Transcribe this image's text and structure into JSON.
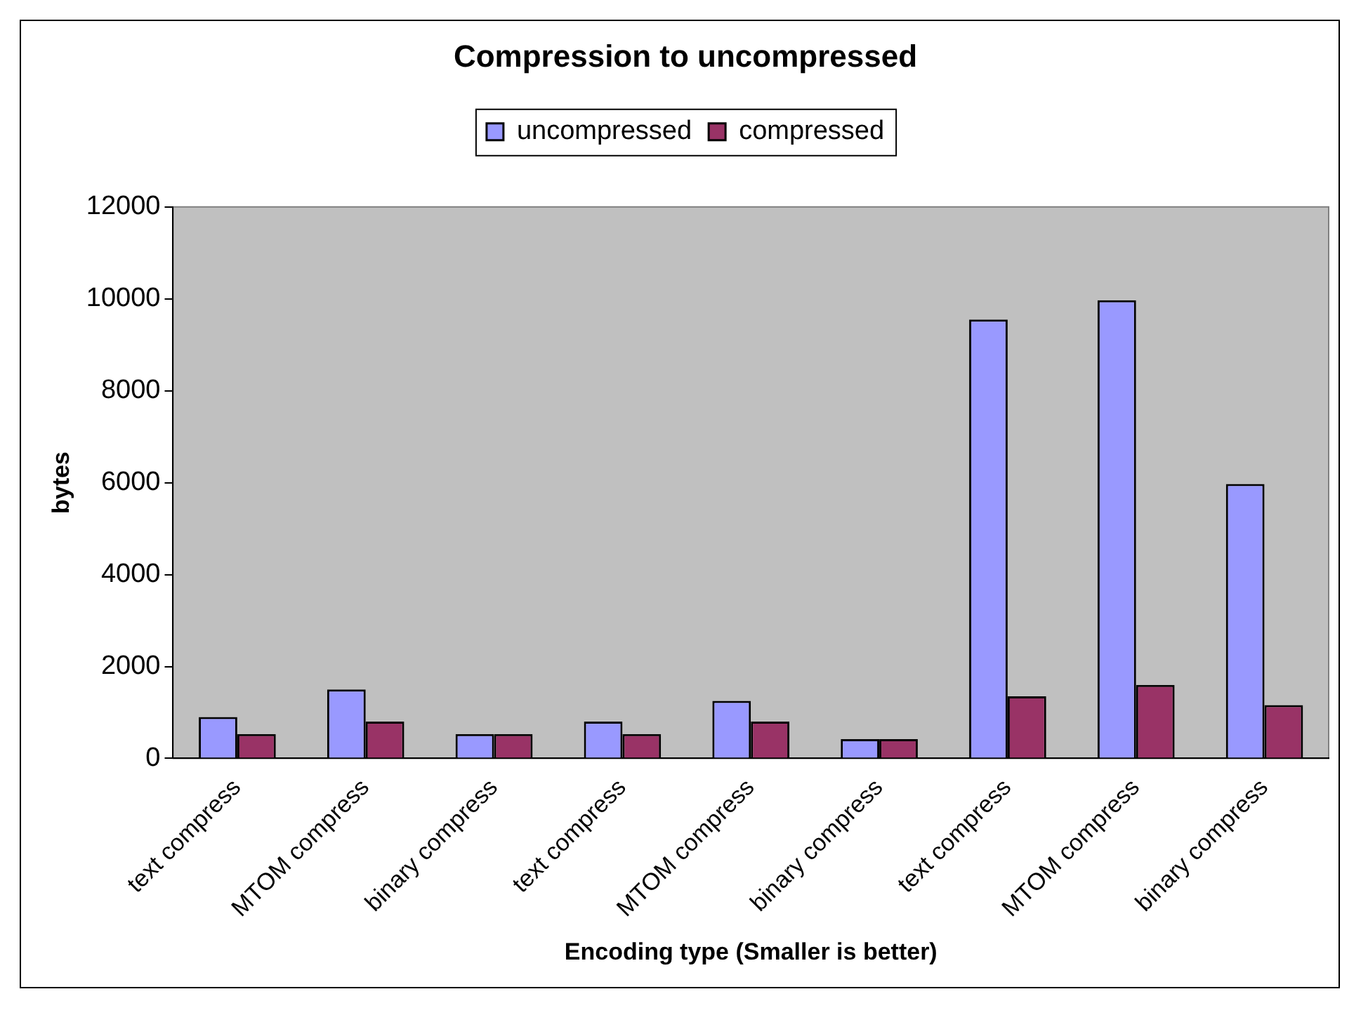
{
  "chart_data": {
    "type": "bar",
    "title": "Compression to uncompressed",
    "xlabel": "Encoding type (Smaller is better)",
    "ylabel": "bytes",
    "categories": [
      "text compress",
      "MTOM compress",
      "binary compress",
      "text compress",
      "MTOM compress",
      "binary compress",
      "text compress",
      "MTOM compress",
      "binary compress"
    ],
    "series": [
      {
        "name": "uncompressed",
        "color": "#9999ff",
        "values": [
          900,
          1500,
          530,
          800,
          1250,
          420,
          9550,
          9970,
          5970
        ]
      },
      {
        "name": "compressed",
        "color": "#993366",
        "values": [
          530,
          800,
          530,
          530,
          800,
          420,
          1350,
          1600,
          1160
        ]
      }
    ],
    "ylim": [
      0,
      12000
    ],
    "yticks": [
      0,
      2000,
      4000,
      6000,
      8000,
      10000,
      12000
    ],
    "grid": false,
    "legend": "top"
  }
}
